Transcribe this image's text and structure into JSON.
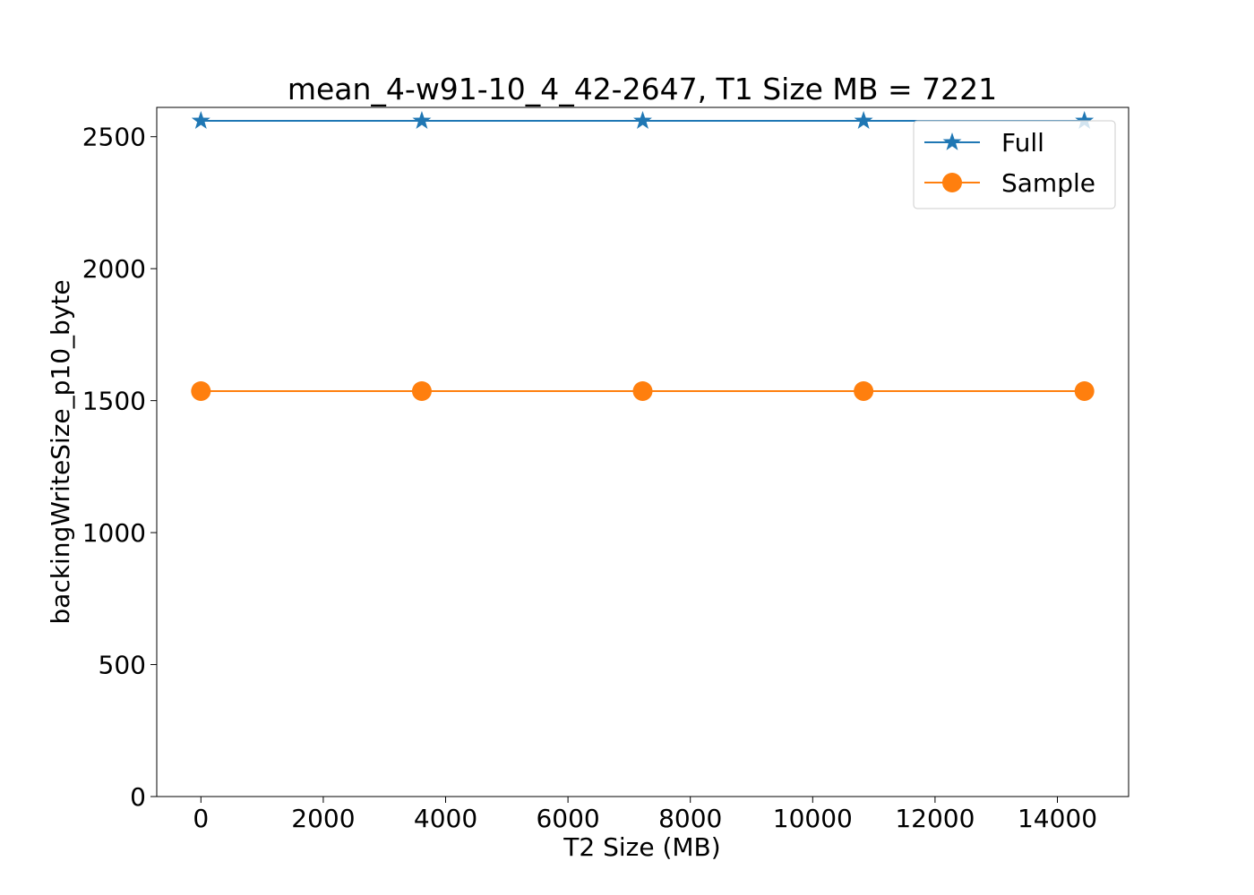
{
  "chart_data": {
    "type": "line",
    "title": "mean_4-w91-10_4_42-2647, T1 Size MB = 7221",
    "xlabel": "T2 Size (MB)",
    "ylabel": "backingWriteSize_p10_byte",
    "x": [
      0,
      3611,
      7221,
      10832,
      14442
    ],
    "xlim": [
      -722,
      15164
    ],
    "ylim": [
      0,
      2611
    ],
    "xticks": [
      0,
      2000,
      4000,
      6000,
      8000,
      10000,
      12000,
      14000
    ],
    "yticks": [
      0,
      500,
      1000,
      1500,
      2000,
      2500
    ],
    "grid": false,
    "legend_position": "upper right",
    "series": [
      {
        "name": "Full",
        "marker": "star",
        "color": "#1f77b4",
        "values": [
          2560,
          2560,
          2560,
          2560,
          2560
        ]
      },
      {
        "name": "Sample",
        "marker": "circle",
        "color": "#ff7f0e",
        "values": [
          1536,
          1536,
          1536,
          1536,
          1536
        ]
      }
    ]
  }
}
